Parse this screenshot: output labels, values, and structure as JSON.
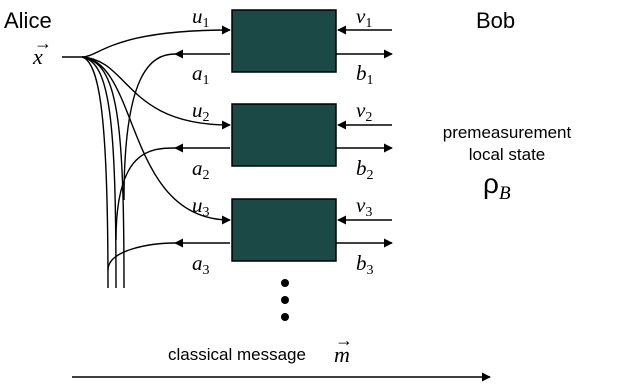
{
  "parties": {
    "left": "Alice",
    "right": "Bob"
  },
  "input_var": {
    "base": "x",
    "arrow": "→"
  },
  "boxes": [
    {
      "u": "u",
      "v": "v",
      "a": "a",
      "b": "b",
      "index": "1"
    },
    {
      "u": "u",
      "v": "v",
      "a": "a",
      "b": "b",
      "index": "2"
    },
    {
      "u": "u",
      "v": "v",
      "a": "a",
      "b": "b",
      "index": "3"
    }
  ],
  "bob_state": {
    "line1": "premeasurement",
    "line2": "local state",
    "symbol": "ρ",
    "subscript": "B"
  },
  "message": {
    "label": "classical message",
    "var": "m",
    "arrow": "→"
  },
  "colors": {
    "box_fill": "#1b4a46",
    "ink": "#000000"
  }
}
